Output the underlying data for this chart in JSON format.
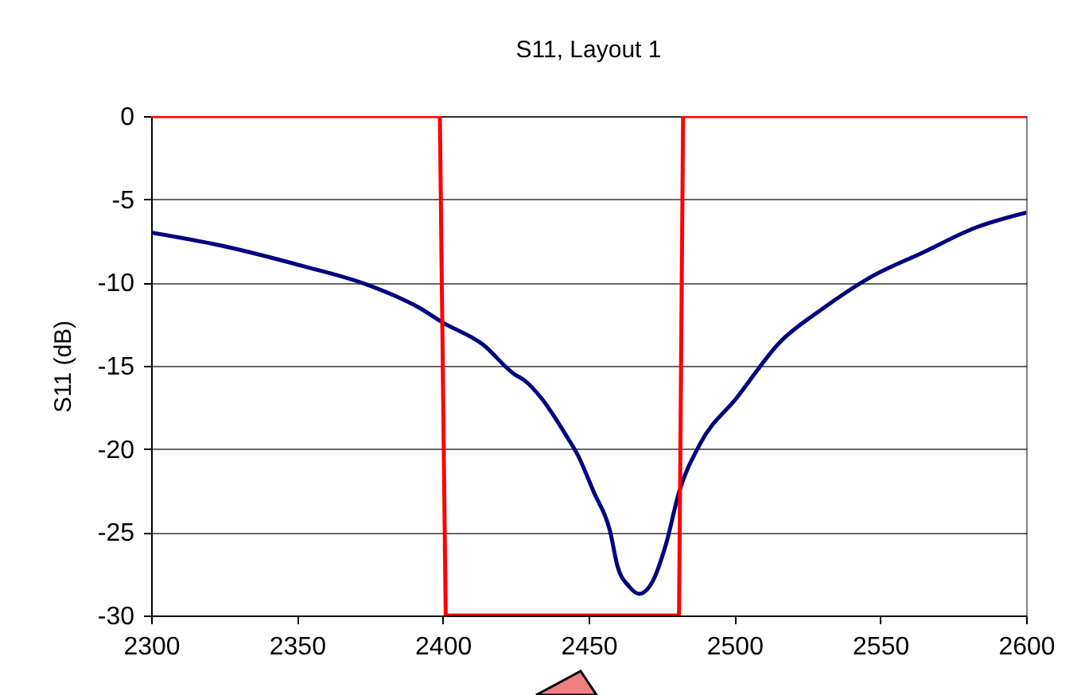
{
  "chart_data": {
    "type": "line",
    "title": "S11, Layout 1",
    "ylabel": "S11 (dB)",
    "xlim": [
      2300,
      2600
    ],
    "xticks": [
      2300,
      2350,
      2400,
      2450,
      2500,
      2550,
      2600
    ],
    "ylim": [
      -30,
      0
    ],
    "yticks": [
      -30,
      -25,
      -20,
      -15,
      -10,
      -5,
      0
    ],
    "grid": "y",
    "line_style": "solid",
    "series": [
      {
        "color": "#000080",
        "x": [
          2300,
          2324.5,
          2351.8,
          2373.6,
          2391.8,
          2400,
          2413.6,
          2424.5,
          2428.2,
          2433.6,
          2442.7,
          2446.4,
          2451.8,
          2457.3,
          2460,
          2463.6,
          2467.3,
          2471.8,
          2476.4,
          2481,
          2488.2,
          2500.9,
          2515.5,
          2530,
          2546.4,
          2564.5,
          2582.7,
          2600
        ],
        "values": [
          -7.0,
          -7.8,
          -9.0,
          -10.1,
          -11.5,
          -12.4,
          -13.7,
          -15.5,
          -15.9,
          -16.9,
          -19.3,
          -20.4,
          -22.6,
          -24.9,
          -27.1,
          -28.2,
          -28.7,
          -28.0,
          -25.8,
          -22.6,
          -19.7,
          -16.9,
          -13.6,
          -11.6,
          -9.7,
          -8.2,
          -6.7,
          -5.8
        ]
      },
      {
        "color": "#ff0000",
        "x": [
          2300,
          2399,
          2401,
          2481,
          2482.4,
          2600
        ],
        "values": [
          0,
          0,
          -30,
          -30,
          0,
          0
        ]
      }
    ]
  }
}
